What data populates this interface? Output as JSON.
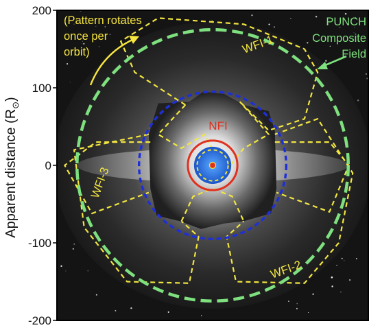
{
  "chart_data": {
    "type": "image-overlay",
    "ylabel": "Apparent distance (R",
    "ylabel_symbol": "⊙",
    "ylabel_close": ")",
    "ylim": [
      -200,
      200
    ],
    "xlim": [
      -200,
      200
    ],
    "yticks": [
      200,
      100,
      0,
      -100,
      -200
    ],
    "ytick_labels": [
      "200",
      "100",
      "0",
      "-100",
      "-200"
    ],
    "fields": [
      {
        "name": "composite_field",
        "shape": "circle",
        "center": [
          0,
          0
        ],
        "radius": 175,
        "color": "#7ee07e",
        "style": "dashed"
      },
      {
        "name": "nfi_outer",
        "shape": "circle",
        "center": [
          0,
          0
        ],
        "radius": 95,
        "color": "#1f2fd8",
        "style": "dotted"
      },
      {
        "name": "nfi_inner",
        "shape": "circle",
        "center": [
          0,
          0
        ],
        "radius": 32,
        "color": "#e0301e",
        "style": "solid"
      },
      {
        "name": "occulter",
        "shape": "circle",
        "center": [
          0,
          0
        ],
        "radius": 24,
        "color": "#2f7fe6",
        "style": "filled"
      },
      {
        "name": "occulter_dashed",
        "shape": "circle",
        "center": [
          0,
          0
        ],
        "radius": 20,
        "color": "#f2e640",
        "style": "dashed"
      }
    ],
    "labels": {
      "nfi": "NFI",
      "wfi1": "WFI-1",
      "wfi2": "WFI-2",
      "wfi3": "WFI-3",
      "punch_line1": "PUNCH",
      "punch_line2": "Composite",
      "punch_line3": "Field",
      "rotate_line1": "(Pattern rotates",
      "rotate_line2": "once per",
      "rotate_line3": "orbit)"
    },
    "colors": {
      "wfi": "#f2e640",
      "composite": "#7ee07e",
      "nfi": "#e0301e",
      "nfi_fov": "#1f2fd8",
      "arrow": "#f7e640"
    }
  }
}
